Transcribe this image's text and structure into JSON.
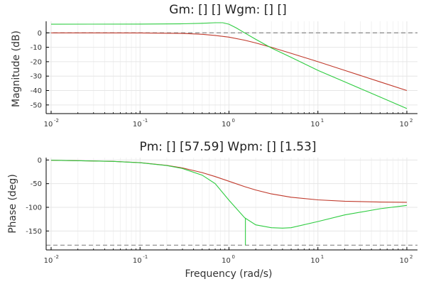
{
  "chart_data": [
    {
      "type": "line",
      "title": "Gm: [] []  Wgm: [] []",
      "xlabel": "",
      "ylabel": "Magnitude (dB)",
      "xscale": "log",
      "xlim": [
        0.01,
        100
      ],
      "ylim": [
        -56,
        8
      ],
      "yticks": [
        0,
        -10,
        -20,
        -30,
        -40,
        -50
      ],
      "xticks": [
        {
          "base": "10",
          "exp": "-2"
        },
        {
          "base": "10",
          "exp": "-1"
        },
        {
          "base": "10",
          "exp": "0"
        },
        {
          "base": "10",
          "exp": "1"
        },
        {
          "base": "10",
          "exp": "2"
        }
      ],
      "grid": true,
      "reference_line": {
        "y": 0,
        "style": "dashed",
        "color": "#888888"
      },
      "series": [
        {
          "color": "#c0392b",
          "x": [
            0.01,
            0.1,
            0.3,
            0.5,
            0.7,
            1.0,
            1.5,
            2.0,
            3.0,
            5.0,
            10,
            20,
            50,
            100
          ],
          "y": [
            0,
            -0.05,
            -0.4,
            -1.0,
            -1.8,
            -3.0,
            -5.1,
            -7.0,
            -10.0,
            -14.2,
            -20.0,
            -26.0,
            -34.0,
            -40.0
          ]
        },
        {
          "color": "#2ecc40",
          "x": [
            0.01,
            0.1,
            0.3,
            0.5,
            0.7,
            0.85,
            1.0,
            1.2,
            1.5,
            2.0,
            3.0,
            5.0,
            10,
            20,
            50,
            100
          ],
          "y": [
            6,
            6.1,
            6.3,
            6.6,
            7.0,
            7.0,
            6.0,
            3.5,
            0,
            -4.5,
            -10.5,
            -17.0,
            -26.0,
            -34.0,
            -44.5,
            -52.5
          ]
        }
      ]
    },
    {
      "type": "line",
      "title": "Pm: [] [57.59]  Wpm: [] [1.53]",
      "xlabel": "Frequency (rad/s)",
      "ylabel": "Phase (deg)",
      "xscale": "log",
      "xlim": [
        0.01,
        100
      ],
      "ylim": [
        -190,
        5
      ],
      "yticks": [
        0,
        -50,
        -100,
        -150
      ],
      "xticks": [
        {
          "base": "10",
          "exp": "-2"
        },
        {
          "base": "10",
          "exp": "-1"
        },
        {
          "base": "10",
          "exp": "0"
        },
        {
          "base": "10",
          "exp": "1"
        },
        {
          "base": "10",
          "exp": "2"
        }
      ],
      "grid": true,
      "reference_line": {
        "y": -180,
        "style": "dashed",
        "color": "#888888"
      },
      "vertical_marker": {
        "x": 1.53,
        "y_from": -180,
        "y_to": -122.41,
        "color": "#2ecc40"
      },
      "series": [
        {
          "color": "#c0392b",
          "x": [
            0.01,
            0.05,
            0.1,
            0.2,
            0.3,
            0.5,
            0.7,
            1.0,
            1.5,
            2.0,
            3.0,
            5.0,
            10,
            20,
            50,
            100
          ],
          "y": [
            -0.6,
            -2.9,
            -5.7,
            -11.3,
            -16.7,
            -26.6,
            -35.0,
            -45.0,
            -56.3,
            -63.4,
            -71.6,
            -78.7,
            -84.3,
            -87.1,
            -88.9,
            -89.4
          ]
        },
        {
          "color": "#2ecc40",
          "x": [
            0.01,
            0.05,
            0.1,
            0.2,
            0.3,
            0.5,
            0.7,
            1.0,
            1.5,
            2.0,
            3.0,
            4.0,
            5.0,
            10,
            20,
            50,
            100
          ],
          "y": [
            -0.6,
            -2.9,
            -5.8,
            -11.8,
            -18.0,
            -32.0,
            -50.0,
            -85.0,
            -122.0,
            -137.0,
            -143.0,
            -144.0,
            -143.0,
            -130.0,
            -116.0,
            -103.0,
            -96.0
          ]
        }
      ]
    }
  ]
}
